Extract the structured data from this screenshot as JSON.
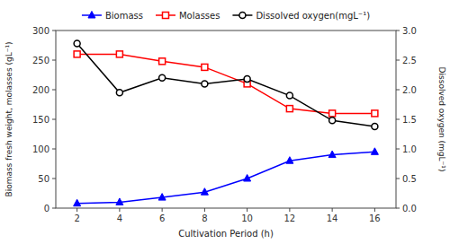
{
  "chart_data": {
    "type": "line",
    "x": [
      2,
      4,
      6,
      8,
      10,
      12,
      14,
      16
    ],
    "xlabel": "Cultivation Period (h)",
    "ylabel": "Biomass fresh weight, molasses (gL⁻¹)",
    "y2label": "Dissolved oxygen (mgL⁻¹)",
    "series": [
      {
        "name": "Biomass",
        "color": "#0000FF",
        "marker": "triangle",
        "values": [
          8,
          10,
          18,
          27,
          50,
          80,
          90,
          95
        ]
      },
      {
        "name": "Molasses",
        "color": "#FF0000",
        "marker": "square",
        "values": [
          260,
          260,
          248,
          238,
          210,
          168,
          160,
          160
        ]
      },
      {
        "name": "Dissolved oxygen(mgL⁻¹)",
        "color": "#000000",
        "marker": "circle",
        "axis": "y2",
        "values": [
          2.78,
          1.95,
          2.2,
          2.1,
          2.18,
          1.9,
          1.48,
          1.38
        ]
      }
    ],
    "xlim": [
      1,
      17
    ],
    "xticks": [
      2,
      4,
      6,
      8,
      10,
      12,
      14,
      16
    ],
    "ylim": [
      0,
      300
    ],
    "yticks": [
      0,
      50,
      100,
      150,
      200,
      250,
      300
    ],
    "y2lim": [
      0,
      3
    ],
    "y2ticks": [
      {
        "value": 0,
        "label": "0.0"
      },
      0.5,
      {
        "value": 1,
        "label": "1.0"
      },
      1.5,
      {
        "value": 2,
        "label": "2.0"
      },
      2.5,
      {
        "value": 3,
        "label": "3.0"
      }
    ],
    "grid": false,
    "legend": "top"
  }
}
